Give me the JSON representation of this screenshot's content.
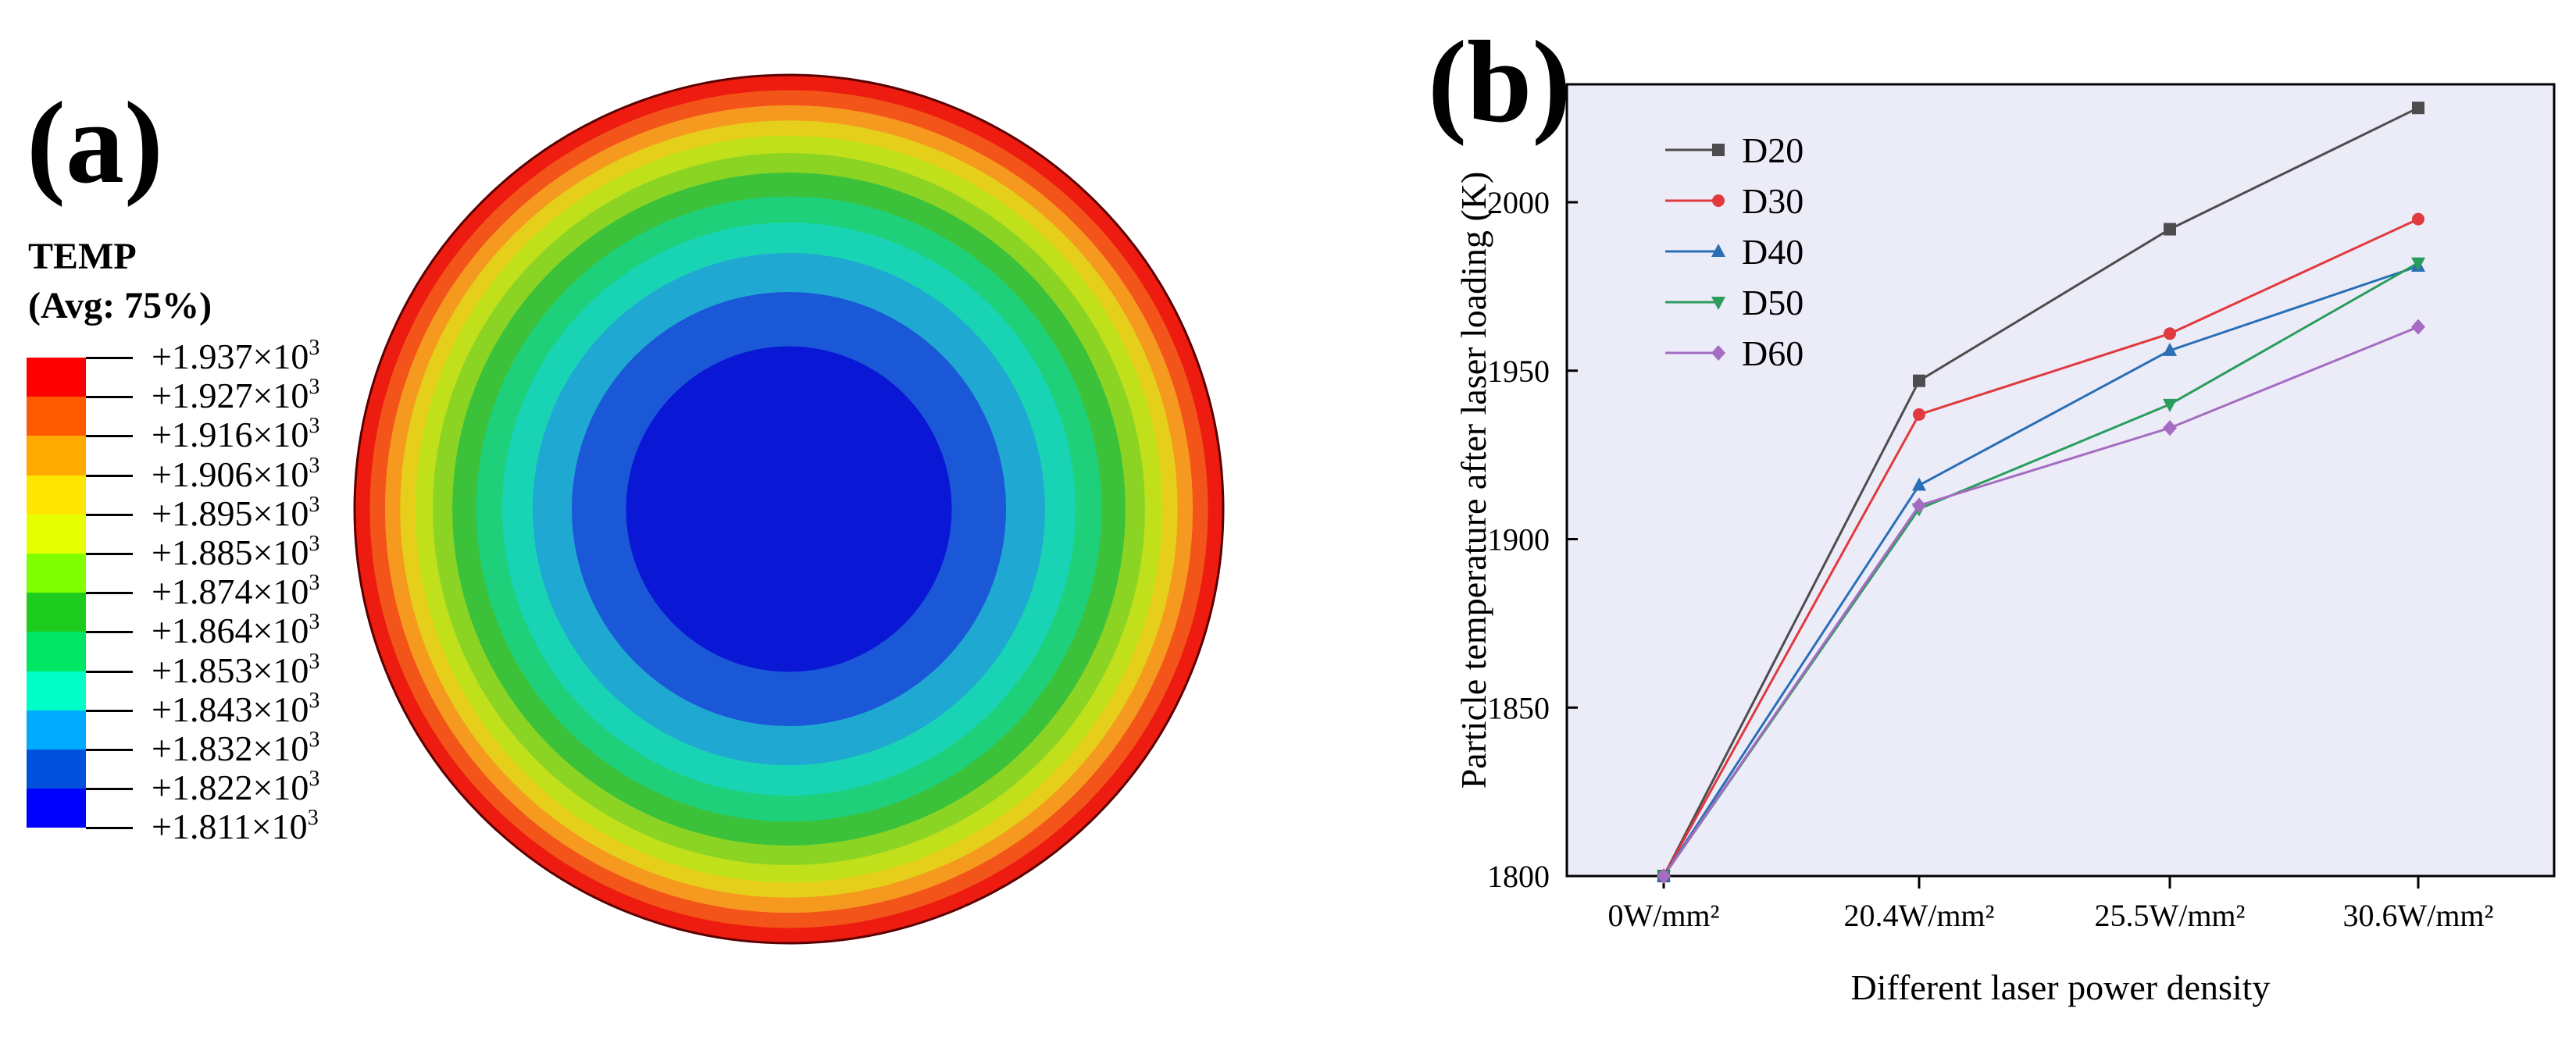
{
  "panel_a": {
    "label": "(a)",
    "legend_title": "TEMP",
    "legend_subtitle": "(Avg: 75%)",
    "legend": [
      {
        "value": "+1.937×10",
        "exponent": "3",
        "color": "#ff0000"
      },
      {
        "value": "+1.927×10",
        "exponent": "3",
        "color": "#ff5a00"
      },
      {
        "value": "+1.916×10",
        "exponent": "3",
        "color": "#ffaa00"
      },
      {
        "value": "+1.906×10",
        "exponent": "3",
        "color": "#ffe600"
      },
      {
        "value": "+1.895×10",
        "exponent": "3",
        "color": "#e6ff00"
      },
      {
        "value": "+1.885×10",
        "exponent": "3",
        "color": "#7fff00"
      },
      {
        "value": "+1.874×10",
        "exponent": "3",
        "color": "#1ecc1e"
      },
      {
        "value": "+1.864×10",
        "exponent": "3",
        "color": "#00e664"
      },
      {
        "value": "+1.853×10",
        "exponent": "3",
        "color": "#00ffc8"
      },
      {
        "value": "+1.843×10",
        "exponent": "3",
        "color": "#00aaff"
      },
      {
        "value": "+1.832×10",
        "exponent": "3",
        "color": "#0050dc"
      },
      {
        "value": "+1.822×10",
        "exponent": "3",
        "color": "#0000ff"
      },
      {
        "value": "+1.811×10",
        "exponent": "3",
        "color": ""
      }
    ],
    "contour_rings": [
      {
        "fraction": 1.0,
        "color": "#ee1c10"
      },
      {
        "fraction": 0.965,
        "color": "#f2541a"
      },
      {
        "fraction": 0.93,
        "color": "#f59a1e"
      },
      {
        "fraction": 0.895,
        "color": "#e6cf1a"
      },
      {
        "fraction": 0.86,
        "color": "#bfe01a"
      },
      {
        "fraction": 0.82,
        "color": "#8cd424"
      },
      {
        "fraction": 0.775,
        "color": "#3cc23a"
      },
      {
        "fraction": 0.72,
        "color": "#1ed07a"
      },
      {
        "fraction": 0.66,
        "color": "#18d4b4"
      },
      {
        "fraction": 0.59,
        "color": "#1fa8d2"
      },
      {
        "fraction": 0.5,
        "color": "#1a58d8"
      },
      {
        "fraction": 0.375,
        "color": "#0a18d6"
      }
    ]
  },
  "chart_data": {
    "panel_label": "(b)",
    "type": "line",
    "categories": [
      "0W/mm²",
      "20.4W/mm²",
      "25.5W/mm²",
      "30.6W/mm²"
    ],
    "series": [
      {
        "name": "D20",
        "values": [
          1800,
          1947,
          1992,
          2028
        ],
        "color": "#4d4d4d",
        "marker": "square"
      },
      {
        "name": "D30",
        "values": [
          1800,
          1937,
          1961,
          1995
        ],
        "color": "#e0393e",
        "marker": "circle"
      },
      {
        "name": "D40",
        "values": [
          1800,
          1916,
          1956,
          1981
        ],
        "color": "#2a6fb5",
        "marker": "triangle-up"
      },
      {
        "name": "D50",
        "values": [
          1800,
          1909,
          1940,
          1982
        ],
        "color": "#2a9d5c",
        "marker": "triangle-down"
      },
      {
        "name": "D60",
        "values": [
          1800,
          1910,
          1933,
          1963
        ],
        "color": "#a56cc1",
        "marker": "diamond"
      }
    ],
    "xlabel": "Different laser power density",
    "ylabel": "Particle temperature after laser loading (K)",
    "ylim": [
      1800,
      2035
    ],
    "yticks": [
      1800,
      1850,
      1900,
      1950,
      2000
    ],
    "background": "#ececf9",
    "legend_position": "top-left",
    "grid": false
  }
}
